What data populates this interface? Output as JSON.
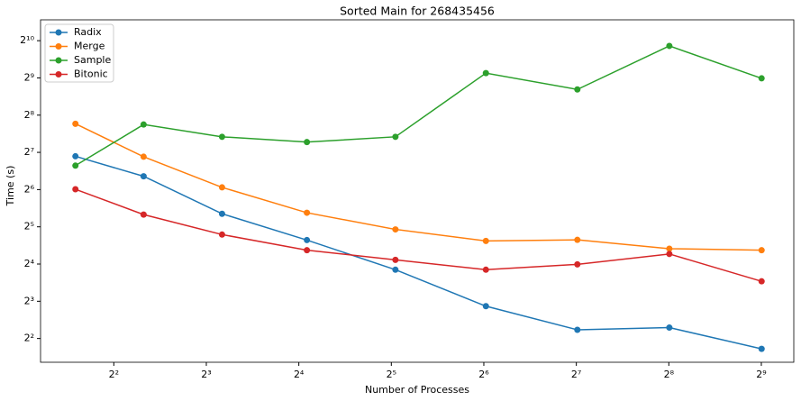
{
  "chart_data": {
    "type": "line",
    "title": "Sorted Main for 268435456",
    "x_label": "Number of Processes",
    "y_label": "Time (s)",
    "log_x": 2,
    "log_y": 2,
    "grid": false,
    "legend": "upper left",
    "x": [
      3,
      5,
      9,
      17,
      33,
      65,
      129,
      257,
      513
    ],
    "series": [
      {
        "name": "Radix",
        "color": "#1f77b4",
        "values": [
          119,
          82,
          40.8,
          25,
          14.4,
          7.3,
          4.7,
          4.9,
          3.3
        ]
      },
      {
        "name": "Merge",
        "color": "#ff7f0e",
        "values": [
          218,
          118,
          66.7,
          41.6,
          30.5,
          24.6,
          25.1,
          21.3,
          20.7
        ]
      },
      {
        "name": "Sample",
        "color": "#2ca02c",
        "values": [
          100,
          215,
          171,
          155,
          171,
          560,
          413,
          929,
          508
        ]
      },
      {
        "name": "Bitonic",
        "color": "#d62728",
        "values": [
          64.4,
          40.2,
          27.7,
          20.7,
          17.3,
          14.4,
          15.9,
          19.3,
          11.6
        ]
      }
    ],
    "xlim": [
      2.31,
      653
    ],
    "ylim": [
      2.57,
      1510
    ],
    "xticks": [
      {
        "value": 4,
        "label": "2²"
      },
      {
        "value": 8,
        "label": "2³"
      },
      {
        "value": 16,
        "label": "2⁴"
      },
      {
        "value": 32,
        "label": "2⁵"
      },
      {
        "value": 64,
        "label": "2⁶"
      },
      {
        "value": 128,
        "label": "2⁷"
      },
      {
        "value": 256,
        "label": "2⁸"
      },
      {
        "value": 512,
        "label": "2⁹"
      }
    ],
    "yticks": [
      {
        "value": 4,
        "label": "2²"
      },
      {
        "value": 8,
        "label": "2³"
      },
      {
        "value": 16,
        "label": "2⁴"
      },
      {
        "value": 32,
        "label": "2⁵"
      },
      {
        "value": 64,
        "label": "2⁶"
      },
      {
        "value": 128,
        "label": "2⁷"
      },
      {
        "value": 256,
        "label": "2⁸"
      },
      {
        "value": 512,
        "label": "2⁹"
      },
      {
        "value": 1024,
        "label": "2¹⁰"
      }
    ]
  }
}
